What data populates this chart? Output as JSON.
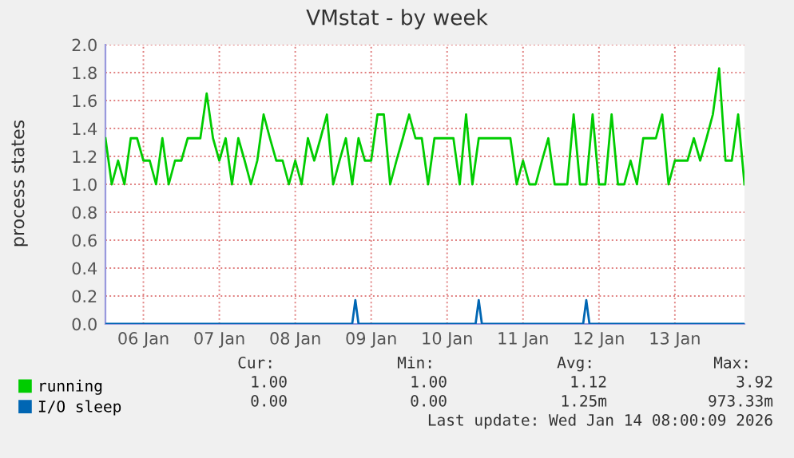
{
  "chart_data": {
    "type": "line",
    "title": "VMstat - by week",
    "ylabel": "process states",
    "x": [
      "2026-01-05T12:00",
      "2026-01-05T14:00",
      "2026-01-05T16:00",
      "2026-01-05T18:00",
      "2026-01-05T20:00",
      "2026-01-05T22:00",
      "2026-01-06T00:00",
      "2026-01-06T02:00",
      "2026-01-06T04:00",
      "2026-01-06T06:00",
      "2026-01-06T08:00",
      "2026-01-06T10:00",
      "2026-01-06T12:00",
      "2026-01-06T14:00",
      "2026-01-06T16:00",
      "2026-01-06T18:00",
      "2026-01-06T20:00",
      "2026-01-06T22:00",
      "2026-01-07T00:00",
      "2026-01-07T02:00",
      "2026-01-07T04:00",
      "2026-01-07T06:00",
      "2026-01-07T08:00",
      "2026-01-07T10:00",
      "2026-01-07T12:00",
      "2026-01-07T14:00",
      "2026-01-07T16:00",
      "2026-01-07T18:00",
      "2026-01-07T20:00",
      "2026-01-07T22:00",
      "2026-01-08T00:00",
      "2026-01-08T02:00",
      "2026-01-08T04:00",
      "2026-01-08T06:00",
      "2026-01-08T08:00",
      "2026-01-08T10:00",
      "2026-01-08T12:00",
      "2026-01-08T14:00",
      "2026-01-08T16:00",
      "2026-01-08T18:00",
      "2026-01-08T20:00",
      "2026-01-08T22:00",
      "2026-01-09T00:00",
      "2026-01-09T02:00",
      "2026-01-09T04:00",
      "2026-01-09T06:00",
      "2026-01-09T08:00",
      "2026-01-09T10:00",
      "2026-01-09T12:00",
      "2026-01-09T14:00",
      "2026-01-09T16:00",
      "2026-01-09T18:00",
      "2026-01-09T20:00",
      "2026-01-09T22:00",
      "2026-01-10T00:00",
      "2026-01-10T02:00",
      "2026-01-10T04:00",
      "2026-01-10T06:00",
      "2026-01-10T08:00",
      "2026-01-10T10:00",
      "2026-01-10T12:00",
      "2026-01-10T14:00",
      "2026-01-10T16:00",
      "2026-01-10T18:00",
      "2026-01-10T20:00",
      "2026-01-10T22:00",
      "2026-01-11T00:00",
      "2026-01-11T02:00",
      "2026-01-11T04:00",
      "2026-01-11T06:00",
      "2026-01-11T08:00",
      "2026-01-11T10:00",
      "2026-01-11T12:00",
      "2026-01-11T14:00",
      "2026-01-11T16:00",
      "2026-01-11T18:00",
      "2026-01-11T20:00",
      "2026-01-11T22:00",
      "2026-01-12T00:00",
      "2026-01-12T02:00",
      "2026-01-12T04:00",
      "2026-01-12T06:00",
      "2026-01-12T08:00",
      "2026-01-12T10:00",
      "2026-01-12T12:00",
      "2026-01-12T14:00",
      "2026-01-12T16:00",
      "2026-01-12T18:00",
      "2026-01-12T20:00",
      "2026-01-12T22:00",
      "2026-01-13T00:00",
      "2026-01-13T02:00",
      "2026-01-13T04:00",
      "2026-01-13T06:00",
      "2026-01-13T08:00",
      "2026-01-13T10:00",
      "2026-01-13T12:00",
      "2026-01-13T14:00",
      "2026-01-13T16:00",
      "2026-01-13T18:00",
      "2026-01-13T20:00",
      "2026-01-13T22:00"
    ],
    "series": [
      {
        "name": "running",
        "color": "#00cc00",
        "values": [
          1.33,
          1.0,
          1.17,
          1.0,
          1.33,
          1.33,
          1.17,
          1.17,
          1.0,
          1.33,
          1.0,
          1.17,
          1.17,
          1.33,
          1.33,
          1.33,
          1.65,
          1.33,
          1.17,
          1.33,
          1.0,
          1.33,
          1.17,
          1.0,
          1.17,
          1.5,
          1.33,
          1.17,
          1.17,
          1.0,
          1.17,
          1.0,
          1.33,
          1.17,
          1.33,
          1.5,
          1.0,
          1.17,
          1.33,
          1.0,
          1.33,
          1.17,
          1.17,
          1.5,
          1.5,
          1.0,
          1.17,
          1.33,
          1.5,
          1.33,
          1.33,
          1.0,
          1.33,
          1.33,
          1.33,
          1.33,
          1.0,
          1.5,
          1.0,
          1.33,
          1.33,
          1.33,
          1.33,
          1.33,
          1.33,
          1.0,
          1.17,
          1.0,
          1.0,
          1.17,
          1.33,
          1.0,
          1.0,
          1.0,
          1.5,
          1.0,
          1.0,
          1.5,
          1.0,
          1.0,
          1.5,
          1.0,
          1.0,
          1.17,
          1.0,
          1.33,
          1.33,
          1.33,
          1.5,
          1.0,
          1.17,
          1.17,
          1.17,
          1.33,
          1.17,
          1.33,
          1.5,
          1.83,
          1.17,
          1.17,
          1.5,
          1.0
        ]
      },
      {
        "name": "I/O sleep",
        "color": "#0066b3",
        "x": [
          "2026-01-05T12:00",
          "2026-01-08T18:00",
          "2026-01-08T19:00",
          "2026-01-08T20:00",
          "2026-01-10T09:00",
          "2026-01-10T10:00",
          "2026-01-10T11:00",
          "2026-01-11T19:00",
          "2026-01-11T20:00",
          "2026-01-11T21:00",
          "2026-01-13T22:00"
        ],
        "values": [
          0,
          0,
          0.17,
          0,
          0,
          0.17,
          0,
          0,
          0.17,
          0,
          0
        ]
      }
    ],
    "xlim": [
      "2026-01-05T12:00",
      "2026-01-13T22:00"
    ],
    "xticks": [
      {
        "value": "2026-01-06",
        "label": "06 Jan"
      },
      {
        "value": "2026-01-07",
        "label": "07 Jan"
      },
      {
        "value": "2026-01-08",
        "label": "08 Jan"
      },
      {
        "value": "2026-01-09",
        "label": "09 Jan"
      },
      {
        "value": "2026-01-10",
        "label": "10 Jan"
      },
      {
        "value": "2026-01-11",
        "label": "11 Jan"
      },
      {
        "value": "2026-01-12",
        "label": "12 Jan"
      },
      {
        "value": "2026-01-13",
        "label": "13 Jan"
      }
    ],
    "ylim": [
      0,
      2.0
    ],
    "yticks": [
      {
        "value": 0,
        "label": "0.0"
      },
      {
        "value": 0.2,
        "label": "0.2"
      },
      {
        "value": 0.4,
        "label": "0.4"
      },
      {
        "value": 0.6,
        "label": "0.6"
      },
      {
        "value": 0.8,
        "label": "0.8"
      },
      {
        "value": 1.0,
        "label": "1.0"
      },
      {
        "value": 1.2,
        "label": "1.2"
      },
      {
        "value": 1.4,
        "label": "1.4"
      },
      {
        "value": 1.6,
        "label": "1.6"
      },
      {
        "value": 1.8,
        "label": "1.8"
      },
      {
        "value": 2.0,
        "label": "2.0"
      }
    ],
    "grid": true,
    "legend": "bottom",
    "marker": "none",
    "line_style": "solid",
    "annotations": [
      "Cur:",
      "Min:",
      "Avg:",
      "Max:",
      "1.00",
      "1.00",
      "1.12",
      "3.92",
      "0.00",
      "0.00",
      "1.25m",
      "973.33m",
      "Last update: Wed Jan 14 08:00:09 2026"
    ]
  }
}
